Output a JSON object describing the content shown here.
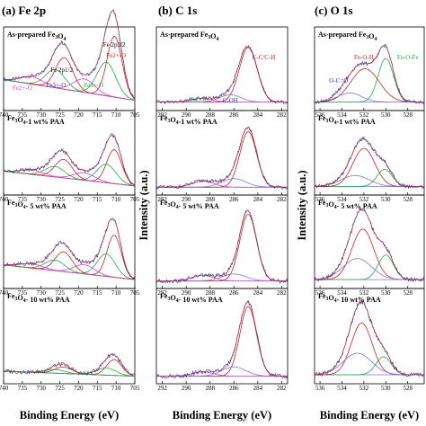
{
  "chart_data": [
    {
      "type": "line",
      "title": "(a) Fe 2p",
      "xlabel": "Binding Energy (eV)",
      "ylabel": "",
      "xlim": [
        740,
        705
      ],
      "xticks": [
        740,
        735,
        730,
        725,
        720,
        715,
        710,
        705
      ],
      "grid": false,
      "series_colors": {
        "raw": "#1f2f8f",
        "fit": "#cc2222",
        "Fe2+": "#cc2222",
        "Fe3+": "#22aa44",
        "satellite": "#cc44cc",
        "background": "#7777dd"
      },
      "panels": [
        {
          "sample": "As-prepared Fe3O4",
          "labels": [
            {
              "text": "Fe  2p1/2",
              "x": 724.5,
              "color": "#000000"
            },
            {
              "text": "Fe  2p3/2",
              "x": 710.5,
              "color": "#000000"
            },
            {
              "text": "Fe2+-O",
              "x": 710,
              "color": "#cc2222"
            },
            {
              "text": "Fe3+-O",
              "x": 716,
              "color": "#22aa44"
            },
            {
              "text": "Fe3+-O",
              "x": 726,
              "color": "#3333aa"
            },
            {
              "text": "Fe2+-O",
              "x": 735,
              "color": "#cc44cc"
            }
          ],
          "peaks": [
            {
              "name": "Fe2+",
              "center": 710.4,
              "amplitude": 1.0,
              "width": 2.0
            },
            {
              "name": "Fe3+",
              "center": 712.6,
              "amplitude": 0.55,
              "width": 2.5
            },
            {
              "name": "satellite",
              "center": 718.5,
              "amplitude": 0.22,
              "width": 2.8
            },
            {
              "name": "Fe2+",
              "center": 723.8,
              "amplitude": 0.52,
              "width": 2.3
            },
            {
              "name": "Fe3+",
              "center": 726.2,
              "amplitude": 0.3,
              "width": 2.6
            },
            {
              "name": "satellite",
              "center": 732.5,
              "amplitude": 0.12,
              "width": 3.0
            }
          ],
          "background": [
            0.42,
            0.08
          ]
        },
        {
          "sample": "Fe3O4-1 wt% PAA",
          "labels": [],
          "peaks": [
            {
              "name": "Fe2+",
              "center": 710.5,
              "amplitude": 0.55,
              "width": 2.0
            },
            {
              "name": "Fe3+",
              "center": 712.6,
              "amplitude": 0.3,
              "width": 2.5
            },
            {
              "name": "satellite",
              "center": 718.5,
              "amplitude": 0.12,
              "width": 2.8
            },
            {
              "name": "Fe2+",
              "center": 724.0,
              "amplitude": 0.3,
              "width": 2.3
            },
            {
              "name": "Fe3+",
              "center": 726.3,
              "amplitude": 0.17,
              "width": 2.6
            },
            {
              "name": "satellite",
              "center": 732.5,
              "amplitude": 0.07,
              "width": 3.0
            }
          ],
          "background": [
            0.3,
            0.06
          ]
        },
        {
          "sample": "Fe3O4- 5 wt% PAA",
          "labels": [],
          "peaks": [
            {
              "name": "Fe2+",
              "center": 710.5,
              "amplitude": 0.6,
              "width": 1.9
            },
            {
              "name": "Fe3+",
              "center": 712.6,
              "amplitude": 0.32,
              "width": 2.4
            },
            {
              "name": "satellite",
              "center": 718.5,
              "amplitude": 0.13,
              "width": 2.8
            },
            {
              "name": "Fe2+",
              "center": 724.0,
              "amplitude": 0.28,
              "width": 2.3
            },
            {
              "name": "Fe3+",
              "center": 726.3,
              "amplitude": 0.15,
              "width": 2.6
            },
            {
              "name": "satellite",
              "center": 732.5,
              "amplitude": 0.06,
              "width": 3.0
            }
          ],
          "background": [
            0.26,
            0.05
          ]
        },
        {
          "sample": "Fe3O4- 10 wt% PAA",
          "labels": [],
          "peaks": [
            {
              "name": "Fe2+",
              "center": 710.5,
              "amplitude": 0.22,
              "width": 2.0
            },
            {
              "name": "Fe3+",
              "center": 712.6,
              "amplitude": 0.1,
              "width": 2.5
            },
            {
              "name": "Fe2+",
              "center": 724.0,
              "amplitude": 0.09,
              "width": 2.3
            },
            {
              "name": "Fe3+",
              "center": 726.3,
              "amplitude": 0.05,
              "width": 2.6
            }
          ],
          "background": [
            0.1,
            0.03
          ]
        }
      ]
    },
    {
      "type": "line",
      "title": "(b) C 1s",
      "xlabel": "Binding Energy (eV)",
      "ylabel": "Intensity (a.u.)",
      "xlim": [
        292.5,
        281.5
      ],
      "xticks": [
        292,
        290,
        288,
        286,
        284,
        282
      ],
      "grid": false,
      "series_colors": {
        "raw": "#1f2f8f",
        "fit": "#cc2222",
        "C-C/C-H": "#cc2222",
        "C-OH": "#7777dd",
        "O-C=O": "#cc44cc",
        "background": "#7777dd"
      },
      "panels": [
        {
          "sample": "As-prepared Fe3O4",
          "labels": [
            {
              "text": "C-C/C-H",
              "x": 283.5,
              "color": "#cc2222"
            },
            {
              "text": "O-C=O",
              "x": 289.0,
              "color": "#22aa44"
            },
            {
              "text": "C-OH",
              "x": 286.3,
              "color": "#3333aa"
            }
          ],
          "peaks": [
            {
              "name": "C-C/C-H",
              "center": 284.8,
              "amplitude": 0.9,
              "width": 0.75
            },
            {
              "name": "C-OH",
              "center": 286.3,
              "amplitude": 0.12,
              "width": 0.9
            },
            {
              "name": "O-C=O",
              "center": 288.7,
              "amplitude": 0.06,
              "width": 0.9
            }
          ],
          "background": [
            0.05,
            0.05
          ]
        },
        {
          "sample": "Fe3O4-1 wt% PAA",
          "labels": [],
          "peaks": [
            {
              "name": "C-C/C-H",
              "center": 284.8,
              "amplitude": 0.9,
              "width": 0.7
            },
            {
              "name": "C-OH",
              "center": 286.0,
              "amplitude": 0.14,
              "width": 1.0
            },
            {
              "name": "O-C=O",
              "center": 288.6,
              "amplitude": 0.1,
              "width": 0.9
            }
          ],
          "background": [
            0.04,
            0.04
          ]
        },
        {
          "sample": "Fe3O4- 5 wt% PAA",
          "labels": [],
          "peaks": [
            {
              "name": "C-C/C-H",
              "center": 284.8,
              "amplitude": 0.95,
              "width": 0.7
            },
            {
              "name": "C-OH",
              "center": 286.0,
              "amplitude": 0.1,
              "width": 1.0
            },
            {
              "name": "O-C=O",
              "center": 288.6,
              "amplitude": 0.08,
              "width": 0.9
            }
          ],
          "background": [
            0.03,
            0.03
          ]
        },
        {
          "sample": "Fe3O4- 10 wt% PAA",
          "labels": [],
          "peaks": [
            {
              "name": "C-C/C-H",
              "center": 284.8,
              "amplitude": 0.97,
              "width": 0.7
            },
            {
              "name": "C-OH",
              "center": 286.0,
              "amplitude": 0.13,
              "width": 1.0
            },
            {
              "name": "O-C=O",
              "center": 288.6,
              "amplitude": 0.06,
              "width": 0.9
            }
          ],
          "background": [
            0.03,
            0.03
          ]
        }
      ]
    },
    {
      "type": "line",
      "title": "(c) O 1s",
      "xlabel": "Binding Energy (eV)",
      "ylabel": "Intensity (a.u.)",
      "xlim": [
        536.5,
        526.5
      ],
      "xticks": [
        536,
        534,
        532,
        530,
        528
      ],
      "grid": false,
      "series_colors": {
        "raw": "#1f2f8f",
        "fit": "#cc2222",
        "Fe-O-H": "#cc2222",
        "Fe-O-Fe": "#22aa44",
        "O-C=O": "#7777dd",
        "envelope": "#cc44cc",
        "background": "#7777dd"
      },
      "panels": [
        {
          "sample": "As-prepared Fe3O4",
          "labels": [
            {
              "text": "Fe-O-H",
              "x": 532.0,
              "color": "#cc2222"
            },
            {
              "text": "Fe-O-Fe",
              "x": 528.0,
              "color": "#22aa44"
            },
            {
              "text": "O-C=O",
              "x": 534.3,
              "color": "#3333aa"
            }
          ],
          "peaks": [
            {
              "name": "Fe-O-Fe",
              "center": 530.0,
              "amplitude": 0.72,
              "width": 0.7
            },
            {
              "name": "Fe-O-H",
              "center": 531.9,
              "amplitude": 0.55,
              "width": 1.3
            },
            {
              "name": "O-C=O",
              "center": 533.3,
              "amplitude": 0.15,
              "width": 1.1
            }
          ],
          "background": [
            0.05,
            0.05
          ]
        },
        {
          "sample": "Fe3O4-1 wt% PAA",
          "labels": [],
          "peaks": [
            {
              "name": "Fe-O-Fe",
              "center": 530.1,
              "amplitude": 0.28,
              "width": 0.7
            },
            {
              "name": "Fe-O-H",
              "center": 532.0,
              "amplitude": 0.62,
              "width": 1.0
            },
            {
              "name": "O-C=O",
              "center": 532.8,
              "amplitude": 0.18,
              "width": 1.3
            }
          ],
          "background": [
            0.05,
            0.05
          ]
        },
        {
          "sample": "Fe3O4- 5 wt% PAA",
          "labels": [],
          "peaks": [
            {
              "name": "Fe-O-Fe",
              "center": 530.0,
              "amplitude": 0.35,
              "width": 0.7
            },
            {
              "name": "Fe-O-H",
              "center": 532.1,
              "amplitude": 0.72,
              "width": 1.0
            },
            {
              "name": "O-C=O",
              "center": 532.6,
              "amplitude": 0.3,
              "width": 1.3
            }
          ],
          "background": [
            0.05,
            0.05
          ]
        },
        {
          "sample": "Fe3O4- 10 wt% PAA",
          "labels": [],
          "peaks": [
            {
              "name": "Fe-O-Fe",
              "center": 530.2,
              "amplitude": 0.25,
              "width": 0.7
            },
            {
              "name": "Fe-O-H",
              "center": 532.2,
              "amplitude": 0.72,
              "width": 0.95
            },
            {
              "name": "O-C=O",
              "center": 532.6,
              "amplitude": 0.3,
              "width": 1.3
            }
          ],
          "background": [
            0.05,
            0.05
          ]
        }
      ]
    }
  ]
}
